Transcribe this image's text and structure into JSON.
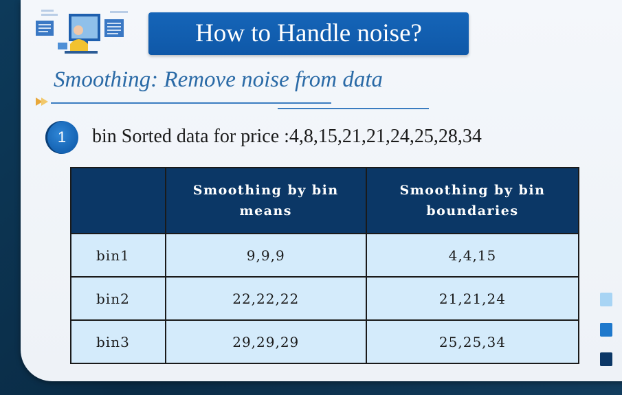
{
  "title": "How to Handle noise?",
  "subtitle": "Smoothing: Remove noise from data",
  "point": {
    "number": "1",
    "text": "bin Sorted data for price :4,8,15,21,21,24,25,28,34"
  },
  "table": {
    "headers": [
      "",
      "Smoothing by bin means",
      "Smoothing by bin boundaries"
    ],
    "rows": [
      {
        "bin": "bin1",
        "means": "9,9,9",
        "boundaries": "4,4,15"
      },
      {
        "bin": "bin2",
        "means": "22,22,22",
        "boundaries": "21,21,24"
      },
      {
        "bin": "bin3",
        "means": "29,29,29",
        "boundaries": "25,25,34"
      }
    ]
  },
  "colors": {
    "title_bg": "#1565b8",
    "header_bg": "#0b3766",
    "cell_bg": "#d4ebfb",
    "subtitle": "#2a6aa6",
    "legend": [
      "#a8d4f4",
      "#1e78cc",
      "#0b3766"
    ]
  },
  "icons": {
    "illustration": "person-at-computer-illustration",
    "arrow": "double-arrow-right-icon"
  }
}
